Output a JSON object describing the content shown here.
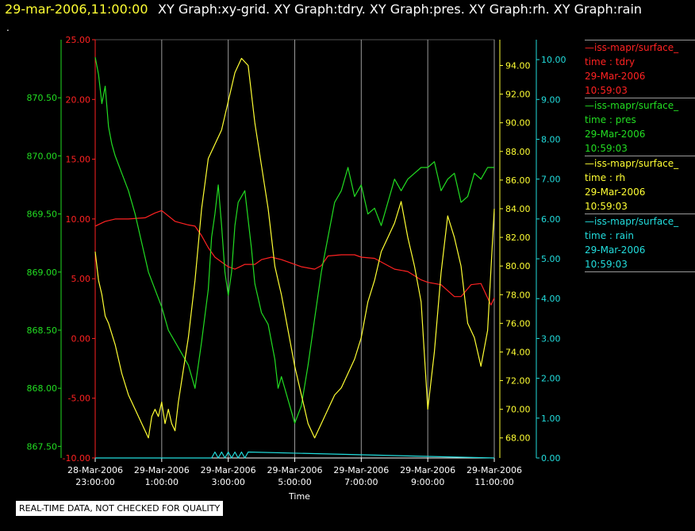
{
  "header": {
    "datetime": "29-mar-2006,11:00:00",
    "titles": "XY Graph:xy-grid.  XY Graph:tdry.  XY Graph:pres.  XY Graph:rh.  XY Graph:rain",
    "dot": "."
  },
  "legend": [
    {
      "name": "—iss-mapr/surface_",
      "var": "time : tdry",
      "date": "29-Mar-2006",
      "time": "10:59:03",
      "color": "#ff2222"
    },
    {
      "name": "—iss-mapr/surface_",
      "var": "time : pres",
      "date": "29-Mar-2006",
      "time": "10:59:03",
      "color": "#22dd22"
    },
    {
      "name": "—iss-mapr/surface_",
      "var": "time : rh",
      "date": "29-Mar-2006",
      "time": "10:59:03",
      "color": "#ffff33"
    },
    {
      "name": "—iss-mapr/surface_",
      "var": "time : rain",
      "date": "29-Mar-2006",
      "time": "10:59:03",
      "color": "#22dddd"
    }
  ],
  "qc_note": "REAL-TIME DATA, NOT CHECKED FOR QUALITY",
  "chart_data": {
    "type": "line",
    "xlabel": "Time",
    "x_ticks": [
      {
        "date": "28-Mar-2006",
        "time": "23:00:00",
        "hour": 0
      },
      {
        "date": "29-Mar-2006",
        "time": "1:00:00",
        "hour": 2
      },
      {
        "date": "29-Mar-2006",
        "time": "3:00:00",
        "hour": 4
      },
      {
        "date": "29-Mar-2006",
        "time": "5:00:00",
        "hour": 6
      },
      {
        "date": "29-Mar-2006",
        "time": "7:00:00",
        "hour": 8
      },
      {
        "date": "29-Mar-2006",
        "time": "9:00:00",
        "hour": 10
      },
      {
        "date": "29-Mar-2006",
        "time": "11:00:00",
        "hour": 12
      }
    ],
    "axes": {
      "pres": {
        "color": "#22dd22",
        "range": [
          867.4,
          871.0
        ],
        "ticks": [
          "867.50",
          "868.00",
          "868.50",
          "869.00",
          "869.50",
          "870.00",
          "870.50"
        ]
      },
      "tdry": {
        "color": "#ff2222",
        "range": [
          -10,
          25
        ],
        "ticks": [
          "-10.00",
          "-5.00",
          "0.00",
          "5.00",
          "10.00",
          "15.00",
          "20.00",
          "25.00"
        ]
      },
      "rh": {
        "color": "#ffff33",
        "range": [
          66.6,
          95.8
        ],
        "ticks": [
          "68.00",
          "70.00",
          "72.00",
          "74.00",
          "76.00",
          "78.00",
          "80.00",
          "82.00",
          "84.00",
          "86.00",
          "88.00",
          "90.00",
          "92.00",
          "94.00"
        ]
      },
      "rain": {
        "color": "#22dddd",
        "range": [
          0,
          10.5
        ],
        "ticks": [
          "0.00",
          "1.00",
          "2.00",
          "3.00",
          "4.00",
          "5.00",
          "6.00",
          "7.00",
          "8.00",
          "9.00",
          "10.00"
        ]
      }
    },
    "grid": true,
    "series": [
      {
        "name": "time : tdry",
        "axis": "tdry",
        "color": "#ff2222",
        "x": [
          0,
          0.3,
          0.6,
          1.0,
          1.5,
          1.8,
          2.0,
          2.4,
          2.8,
          3.0,
          3.2,
          3.4,
          3.6,
          3.8,
          4.0,
          4.2,
          4.5,
          4.8,
          5.0,
          5.3,
          5.6,
          5.8,
          6.0,
          6.2,
          6.4,
          6.6,
          6.8,
          7.0,
          7.4,
          7.8,
          8.0,
          8.4,
          8.8,
          9.0,
          9.4,
          9.8,
          10.0,
          10.4,
          10.8,
          11.0,
          11.3,
          11.6,
          11.9,
          12.0
        ],
        "y": [
          9.4,
          9.8,
          10.0,
          10.0,
          10.1,
          10.5,
          10.7,
          9.8,
          9.5,
          9.4,
          8.6,
          7.6,
          6.8,
          6.4,
          6.0,
          5.8,
          6.2,
          6.2,
          6.6,
          6.8,
          6.6,
          6.4,
          6.2,
          6.0,
          5.9,
          5.8,
          6.1,
          6.9,
          7.0,
          7.0,
          6.8,
          6.7,
          6.1,
          5.8,
          5.6,
          4.9,
          4.7,
          4.5,
          3.5,
          3.5,
          4.5,
          4.6,
          2.8,
          3.4
        ]
      },
      {
        "name": "time : pres",
        "axis": "pres",
        "color": "#22dd22",
        "x": [
          0,
          0.1,
          0.2,
          0.3,
          0.4,
          0.5,
          0.6,
          0.8,
          1.0,
          1.2,
          1.4,
          1.6,
          1.8,
          2.0,
          2.2,
          2.4,
          2.6,
          2.8,
          3.0,
          3.2,
          3.4,
          3.5,
          3.6,
          3.7,
          3.8,
          3.9,
          4.0,
          4.1,
          4.2,
          4.3,
          4.5,
          4.7,
          4.8,
          5.0,
          5.2,
          5.4,
          5.5,
          5.6,
          5.8,
          6.0,
          6.2,
          6.4,
          6.6,
          6.8,
          7.0,
          7.2,
          7.4,
          7.6,
          7.8,
          8.0,
          8.2,
          8.4,
          8.6,
          8.8,
          9.0,
          9.2,
          9.4,
          9.6,
          9.8,
          10.0,
          10.2,
          10.4,
          10.6,
          10.8,
          11.0,
          11.2,
          11.4,
          11.6,
          11.8,
          12.0
        ],
        "y": [
          870.85,
          870.7,
          870.45,
          870.6,
          870.25,
          870.1,
          870.0,
          869.85,
          869.7,
          869.5,
          869.25,
          869.0,
          868.85,
          868.7,
          868.5,
          868.4,
          868.3,
          868.2,
          868.0,
          868.4,
          868.85,
          869.3,
          869.5,
          869.75,
          869.4,
          869.0,
          868.8,
          869.0,
          869.4,
          869.6,
          869.7,
          869.2,
          868.9,
          868.65,
          868.55,
          868.25,
          868.0,
          868.1,
          867.9,
          867.7,
          867.85,
          868.2,
          868.6,
          869.0,
          869.3,
          869.6,
          869.7,
          869.9,
          869.65,
          869.75,
          869.5,
          869.55,
          869.4,
          869.6,
          869.8,
          869.7,
          869.8,
          869.85,
          869.9,
          869.9,
          869.95,
          869.7,
          869.8,
          869.85,
          869.6,
          869.65,
          869.85,
          869.8,
          869.9,
          869.9
        ]
      },
      {
        "name": "time : rh",
        "axis": "rh",
        "color": "#ffff33",
        "x": [
          0,
          0.1,
          0.2,
          0.3,
          0.4,
          0.6,
          0.8,
          1.0,
          1.2,
          1.4,
          1.5,
          1.6,
          1.7,
          1.8,
          1.9,
          2.0,
          2.1,
          2.2,
          2.3,
          2.4,
          2.5,
          2.6,
          2.8,
          3.0,
          3.2,
          3.4,
          3.6,
          3.8,
          4.0,
          4.2,
          4.4,
          4.6,
          4.8,
          5.0,
          5.2,
          5.4,
          5.5,
          5.6,
          5.8,
          6.0,
          6.2,
          6.4,
          6.6,
          6.8,
          7.0,
          7.2,
          7.4,
          7.6,
          7.8,
          8.0,
          8.2,
          8.4,
          8.6,
          8.8,
          9.0,
          9.2,
          9.4,
          9.6,
          9.8,
          10.0,
          10.2,
          10.4,
          10.6,
          10.8,
          11.0,
          11.2,
          11.4,
          11.6,
          11.8,
          12.0
        ],
        "y": [
          81.0,
          79.0,
          78.0,
          76.5,
          76.0,
          74.5,
          72.5,
          71.0,
          70.0,
          69.0,
          68.5,
          68.0,
          69.5,
          70.0,
          69.5,
          70.5,
          69.0,
          70.0,
          69.0,
          68.5,
          70.5,
          72.0,
          75.0,
          79.0,
          84.0,
          87.5,
          88.5,
          89.5,
          91.5,
          93.5,
          94.5,
          94.0,
          90.0,
          87.0,
          84.0,
          80.0,
          79.0,
          78.0,
          75.5,
          73.0,
          71.0,
          69.0,
          68.0,
          69.0,
          70.0,
          71.0,
          71.5,
          72.5,
          73.5,
          75.0,
          77.5,
          79.0,
          81.0,
          82.0,
          83.0,
          84.5,
          82.0,
          80.0,
          77.5,
          70.0,
          74.0,
          79.5,
          83.5,
          82.0,
          80.0,
          76.0,
          75.0,
          73.0,
          75.5,
          84.0
        ]
      },
      {
        "name": "time : rain",
        "axis": "rain",
        "color": "#22dddd",
        "x": [
          0,
          3.5,
          3.6,
          3.7,
          3.8,
          3.9,
          4.0,
          4.1,
          4.2,
          4.3,
          4.4,
          4.5,
          4.6,
          12.0
        ],
        "y": [
          0.0,
          0.0,
          0.15,
          0.0,
          0.15,
          0.0,
          0.15,
          0.0,
          0.15,
          0.0,
          0.15,
          0.0,
          0.15,
          0.0
        ]
      }
    ]
  }
}
